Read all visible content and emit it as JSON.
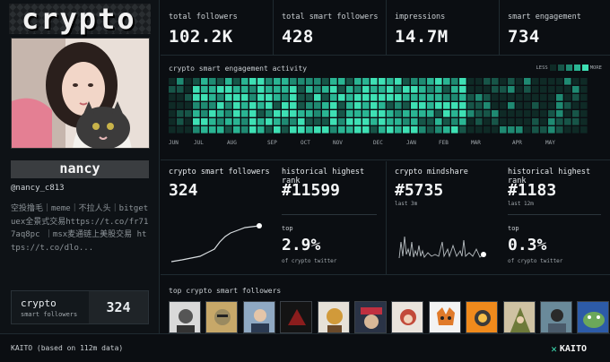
{
  "brand": {
    "title": "crypto"
  },
  "profile": {
    "name": "nancy",
    "handle": "@nancy_c813",
    "bio": "空投撸毛｜meme｜不拉人头｜bitgetuex全景式交易https://t.co/fr717aq8pc ｜msx麦通链上美股交易 https://t.co/dlo..."
  },
  "smart_followers_card": {
    "title": "crypto",
    "subtitle": "smart followers",
    "value": "324"
  },
  "stats": [
    {
      "label": "total followers",
      "value": "102.2K"
    },
    {
      "label": "total smart followers",
      "value": "428"
    },
    {
      "label": "impressions",
      "value": "14.7M"
    },
    {
      "label": "smart engagement",
      "value": "734"
    }
  ],
  "heatmap": {
    "title": "crypto smart engagement activity",
    "legend_less": "LESS",
    "legend_more": "MORE",
    "months": [
      "JUN",
      "JUL",
      "AUG",
      "SEP",
      "OCT",
      "NOV",
      "DEC",
      "JAN",
      "FEB",
      "MAR",
      "APR",
      "MAY"
    ],
    "colors": [
      "#0f2a26",
      "#175548",
      "#1f8a72",
      "#2ab593",
      "#3ee0b4"
    ]
  },
  "panels": {
    "smart_followers": {
      "title": "crypto smart followers",
      "value": "324",
      "label": "top",
      "top_value": "2.9%",
      "footer": "of crypto twitter"
    },
    "hist_rank_1": {
      "title": "historical highest rank",
      "value": "#11599"
    },
    "mindshare": {
      "title": "crypto mindshare",
      "value": "#5735",
      "sub": "last 3m"
    },
    "hist_rank_2": {
      "title": "historical highest rank",
      "value": "#1183",
      "sub": "last 12m",
      "label": "top",
      "top_value": "0.3%",
      "footer": "of crypto twitter"
    }
  },
  "top_followers": {
    "title": "top crypto smart followers"
  },
  "footer": {
    "text": "KAITO (based on 112m data)",
    "logo": "KAITO"
  }
}
